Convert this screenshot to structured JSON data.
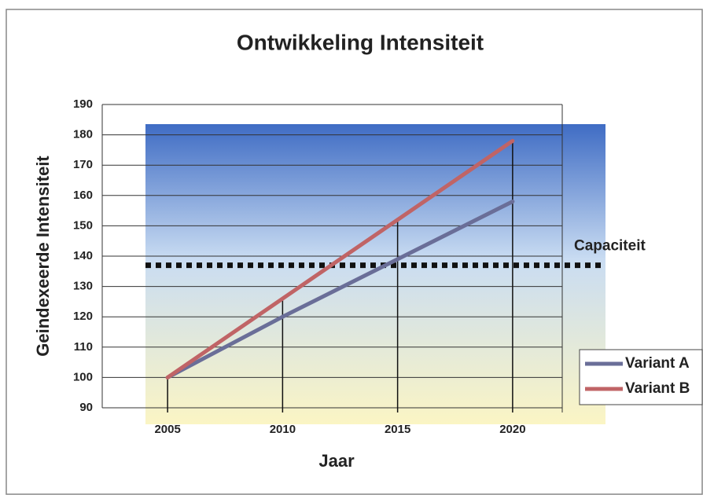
{
  "chart_data": {
    "type": "line",
    "title": "Ontwikkeling Intensiteit",
    "x_label": "Jaar",
    "y_label": "Geindexeerde Intensiteit",
    "categories": [
      "2005",
      "2010",
      "2015",
      "2020"
    ],
    "series": [
      {
        "name": "Variant A",
        "color": "#6a6e98",
        "values": [
          100,
          120,
          139,
          158
        ]
      },
      {
        "name": "Variant B",
        "color": "#c06466",
        "values": [
          100,
          126,
          152,
          178
        ]
      }
    ],
    "capacity": {
      "label": "Capaciteit",
      "value": 137
    },
    "ylim": [
      90,
      190
    ],
    "yticks": [
      90,
      100,
      110,
      120,
      130,
      140,
      150,
      160,
      170,
      180,
      190
    ],
    "grid": true,
    "legend": "right"
  }
}
